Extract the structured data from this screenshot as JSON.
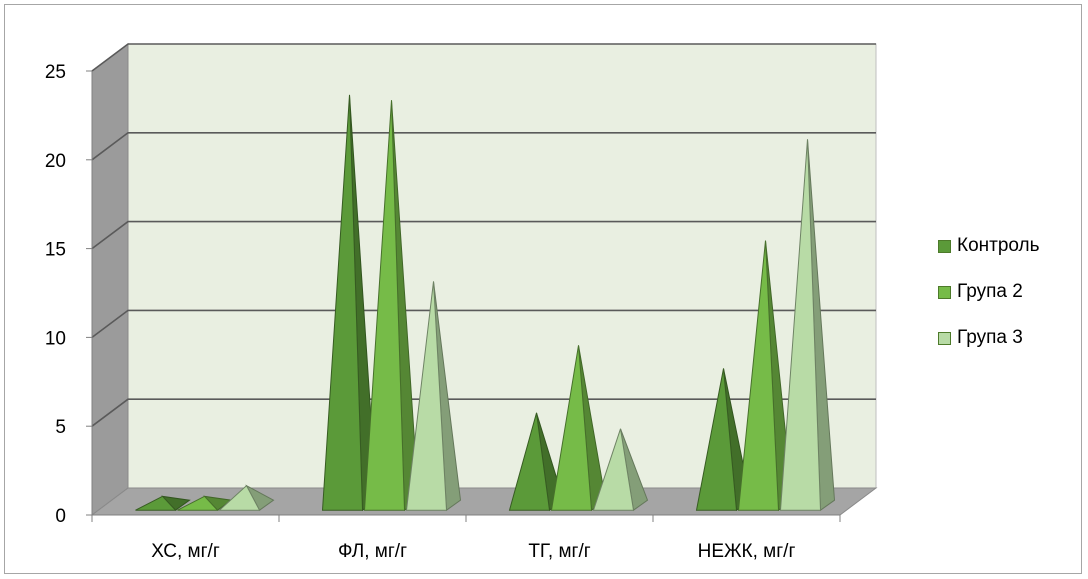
{
  "chart_data": {
    "type": "bar",
    "style": "3d-pyramid",
    "categories": [
      "ХС, мг/г",
      "ФЛ,  мг/г",
      "ТГ, мг/г",
      "НЕЖК, мг/г"
    ],
    "series": [
      {
        "name": "Контроль",
        "values": [
          0.5,
          23.1,
          5.2,
          7.7
        ],
        "color": "#5b9a39"
      },
      {
        "name": "Група 2",
        "values": [
          0.5,
          22.8,
          9.0,
          14.9
        ],
        "color": "#76bb48"
      },
      {
        "name": "Група 3",
        "values": [
          1.1,
          12.6,
          4.3,
          20.6
        ],
        "color": "#b8dba6"
      }
    ],
    "yticks": [
      0,
      5,
      10,
      15,
      20,
      25
    ],
    "ylim": [
      0,
      25
    ],
    "grid": true,
    "legend_position": "right"
  }
}
